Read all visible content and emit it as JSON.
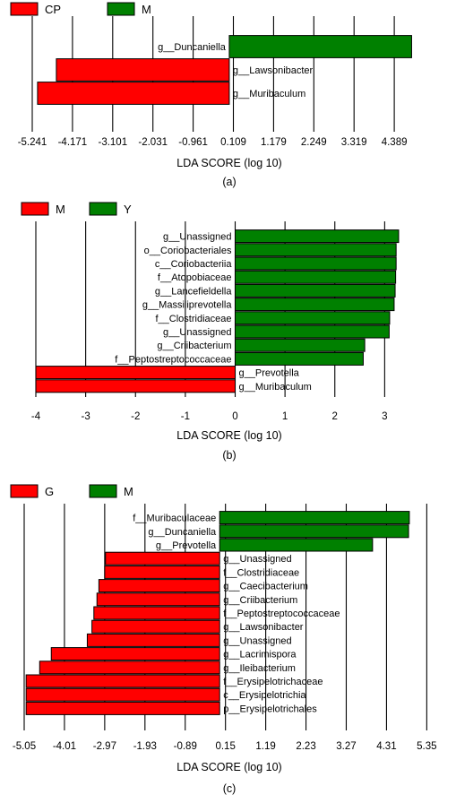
{
  "chart_data": [
    {
      "type": "bar",
      "orientation": "horizontal",
      "caption": "(a)",
      "xlabel": "LDA SCORE (log 10)",
      "xlim": [
        -5.241,
        5.459
      ],
      "xticks": [
        "-5.241",
        "-4.171",
        "-3.101",
        "-2.031",
        "-0.961",
        "0.109",
        "1.179",
        "2.249",
        "3.319",
        "4.389"
      ],
      "grid": true,
      "legend": {
        "placement": "top-left",
        "entries": [
          {
            "label": "CP",
            "color": "#ff0000"
          },
          {
            "label": "M",
            "color": "#008000"
          }
        ]
      },
      "bars": [
        {
          "label": "g__Duncaniella",
          "value": 4.85,
          "group": "M",
          "color": "#008000"
        },
        {
          "label": "g__Lawsonibacter",
          "value": -4.6,
          "group": "CP",
          "color": "#ff0000"
        },
        {
          "label": "g__Muribaculum",
          "value": -5.1,
          "group": "CP",
          "color": "#ff0000"
        }
      ]
    },
    {
      "type": "bar",
      "orientation": "horizontal",
      "caption": "(b)",
      "xlabel": "LDA SCORE (log 10)",
      "xlim": [
        -4,
        4
      ],
      "xticks": [
        "-4",
        "-3",
        "-2",
        "-1",
        "0",
        "1",
        "2",
        "3"
      ],
      "grid": true,
      "legend": {
        "placement": "top-left",
        "entries": [
          {
            "label": "M",
            "color": "#ff0000"
          },
          {
            "label": "Y",
            "color": "#008000"
          }
        ]
      },
      "bars": [
        {
          "label": "g__Unassigned",
          "value": 3.28,
          "group": "Y",
          "color": "#008000"
        },
        {
          "label": "o__Coriobacteriales",
          "value": 3.23,
          "group": "Y",
          "color": "#008000"
        },
        {
          "label": "c__Coriobacteriia",
          "value": 3.23,
          "group": "Y",
          "color": "#008000"
        },
        {
          "label": "f__Atopobiaceae",
          "value": 3.22,
          "group": "Y",
          "color": "#008000"
        },
        {
          "label": "g__Lancefieldella",
          "value": 3.21,
          "group": "Y",
          "color": "#008000"
        },
        {
          "label": "g__Massiliprevotella",
          "value": 3.19,
          "group": "Y",
          "color": "#008000"
        },
        {
          "label": "f__Clostridiaceae",
          "value": 3.1,
          "group": "Y",
          "color": "#008000"
        },
        {
          "label": "g__Unassigned",
          "value": 3.09,
          "group": "Y",
          "color": "#008000"
        },
        {
          "label": "g__Criibacterium",
          "value": 2.6,
          "group": "Y",
          "color": "#008000"
        },
        {
          "label": "f__Peptostreptococcaceae",
          "value": 2.57,
          "group": "Y",
          "color": "#008000"
        },
        {
          "label": "g__Prevotella",
          "value": -4,
          "group": "M",
          "color": "#ff0000"
        },
        {
          "label": "g__Muribaculum",
          "value": -4,
          "group": "M",
          "color": "#ff0000"
        }
      ]
    },
    {
      "type": "bar",
      "orientation": "horizontal",
      "caption": "(c)",
      "xlabel": "LDA SCORE (log 10)",
      "xlim": [
        -5.05,
        5.55
      ],
      "xticks": [
        "-5.05",
        "-4.01",
        "-2.97",
        "-1.93",
        "-0.89",
        "0.15",
        "1.19",
        "2.23",
        "3.27",
        "4.31",
        "5.35"
      ],
      "grid": true,
      "legend": {
        "placement": "top-left",
        "entries": [
          {
            "label": "G",
            "color": "#ff0000"
          },
          {
            "label": "M",
            "color": "#008000"
          }
        ]
      },
      "bars": [
        {
          "label": "f__Muribaculaceae",
          "value": 4.9,
          "group": "M",
          "color": "#008000"
        },
        {
          "label": "g__Duncaniella",
          "value": 4.88,
          "group": "M",
          "color": "#008000"
        },
        {
          "label": "g__Prevotella",
          "value": 3.95,
          "group": "M",
          "color": "#008000"
        },
        {
          "label": "g__Unassigned",
          "value": -2.95,
          "group": "G",
          "color": "#ff0000"
        },
        {
          "label": "f__Clostridiaceae",
          "value": -2.97,
          "group": "G",
          "color": "#ff0000"
        },
        {
          "label": "g__Caecibacterium",
          "value": -3.12,
          "group": "G",
          "color": "#ff0000"
        },
        {
          "label": "g__Criibacterium",
          "value": -3.17,
          "group": "G",
          "color": "#ff0000"
        },
        {
          "label": "f__Peptostreptococcaceae",
          "value": -3.25,
          "group": "G",
          "color": "#ff0000"
        },
        {
          "label": "g__Lawsonibacter",
          "value": -3.3,
          "group": "G",
          "color": "#ff0000"
        },
        {
          "label": "g__Unassigned",
          "value": -3.42,
          "group": "G",
          "color": "#ff0000"
        },
        {
          "label": "g__Lacrimispora",
          "value": -4.35,
          "group": "G",
          "color": "#ff0000"
        },
        {
          "label": "g__Ileibacterium",
          "value": -4.65,
          "group": "G",
          "color": "#ff0000"
        },
        {
          "label": "f__Erysipelotrichaceae",
          "value": -5.0,
          "group": "G",
          "color": "#ff0000"
        },
        {
          "label": "c__Erysipelotrichia",
          "value": -5.0,
          "group": "G",
          "color": "#ff0000"
        },
        {
          "label": "p__Erysipelotrichales",
          "value": -5.0,
          "group": "G",
          "color": "#ff0000"
        }
      ]
    }
  ]
}
